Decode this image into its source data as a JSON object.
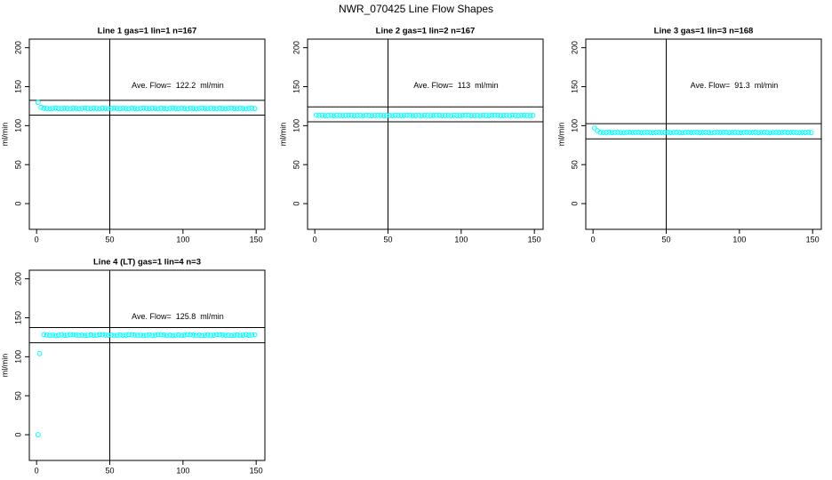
{
  "title": "NWR_070425  Line Flow Shapes",
  "chart_data": [
    {
      "type": "scatter",
      "title": "Line 1 gas=1 lin=1 n=167",
      "ylabel": "ml/min",
      "annotation": "Ave. Flow=  122.2  ml/min",
      "color": "#00ffff",
      "xlim": [
        -4.96,
        155.96
      ],
      "ylim": [
        -33,
        211
      ],
      "xticks": [
        0,
        50,
        100,
        150
      ],
      "yticks": [
        0,
        50,
        100,
        150,
        200
      ],
      "hlines": [
        132.5,
        113.5
      ],
      "vline": 50,
      "x": [
        1,
        3,
        5,
        7,
        9,
        11,
        13,
        15,
        17,
        19,
        21,
        23,
        25,
        27,
        29,
        31,
        33,
        35,
        37,
        39,
        41,
        43,
        45,
        47,
        49,
        51,
        53,
        55,
        57,
        59,
        61,
        63,
        65,
        67,
        69,
        71,
        73,
        75,
        77,
        79,
        81,
        83,
        85,
        87,
        89,
        91,
        93,
        95,
        97,
        99,
        101,
        103,
        105,
        107,
        109,
        111,
        113,
        115,
        117,
        119,
        121,
        123,
        125,
        127,
        129,
        131,
        133,
        135,
        137,
        139,
        141,
        143,
        145,
        147,
        149
      ],
      "values": [
        130,
        123.5,
        122.3,
        122,
        121.8,
        122.1,
        122.4,
        122,
        121.9,
        122.2,
        122,
        121.7,
        122.3,
        122,
        121.8,
        122.1,
        122.4,
        122,
        121.9,
        122.2,
        122,
        121.7,
        122.3,
        122,
        121.8,
        122.1,
        122.4,
        122,
        121.9,
        122.2,
        122,
        121.7,
        122.3,
        122,
        121.8,
        122.1,
        122.4,
        122,
        121.9,
        122.2,
        122,
        121.7,
        122.3,
        122,
        121.8,
        122.1,
        122.4,
        122,
        121.9,
        122.2,
        122,
        121.7,
        122.3,
        122,
        121.8,
        122.1,
        122.4,
        122,
        121.9,
        122.2,
        122,
        121.7,
        122.3,
        122,
        121.8,
        122.1,
        122.4,
        122,
        121.9,
        122.2,
        122,
        121.7,
        122.1,
        122.3,
        121.9
      ]
    },
    {
      "type": "scatter",
      "title": "Line 2 gas=1 lin=2 n=167",
      "ylabel": "ml/min",
      "annotation": "Ave. Flow=  113  ml/min",
      "color": "#00ffff",
      "xlim": [
        -4.96,
        155.96
      ],
      "ylim": [
        -33,
        211
      ],
      "xticks": [
        0,
        50,
        100,
        150
      ],
      "yticks": [
        0,
        50,
        100,
        150,
        200
      ],
      "hlines": [
        124,
        105
      ],
      "vline": 50,
      "x": [
        1,
        3,
        5,
        7,
        9,
        11,
        13,
        15,
        17,
        19,
        21,
        23,
        25,
        27,
        29,
        31,
        33,
        35,
        37,
        39,
        41,
        43,
        45,
        47,
        49,
        51,
        53,
        55,
        57,
        59,
        61,
        63,
        65,
        67,
        69,
        71,
        73,
        75,
        77,
        79,
        81,
        83,
        85,
        87,
        89,
        91,
        93,
        95,
        97,
        99,
        101,
        103,
        105,
        107,
        109,
        111,
        113,
        115,
        117,
        119,
        121,
        123,
        125,
        127,
        129,
        131,
        133,
        135,
        137,
        139,
        141,
        143,
        145,
        147,
        149
      ],
      "values": [
        113.4,
        113.1,
        113.2,
        112.9,
        113,
        113.1,
        112.8,
        113.3,
        113,
        112.9,
        113.1,
        113.2,
        113.2,
        112.9,
        113,
        113.1,
        112.8,
        113.3,
        113,
        112.9,
        113.1,
        113.2,
        113.2,
        112.9,
        113,
        113.1,
        112.8,
        113.3,
        113,
        112.9,
        113.1,
        113.2,
        113.2,
        112.9,
        113,
        113.1,
        112.8,
        113.3,
        113,
        112.9,
        113.1,
        113.2,
        113.2,
        112.9,
        113,
        113.1,
        112.8,
        113.3,
        113,
        112.9,
        113.1,
        113.2,
        113.2,
        112.9,
        113,
        113.1,
        112.8,
        113.3,
        113,
        112.9,
        113.1,
        113.2,
        113.2,
        112.9,
        113,
        113.1,
        112.8,
        113.3,
        113,
        112.9,
        113.1,
        113.2,
        113,
        112.9,
        113.1
      ]
    },
    {
      "type": "scatter",
      "title": "Line 3 gas=1 lin=3 n=168",
      "ylabel": "ml/min",
      "annotation": "Ave. Flow=  91.3  ml/min",
      "color": "#00ffff",
      "xlim": [
        -4.96,
        155.96
      ],
      "ylim": [
        -33,
        211
      ],
      "xticks": [
        0,
        50,
        100,
        150
      ],
      "yticks": [
        0,
        50,
        100,
        150,
        200
      ],
      "hlines": [
        102.5,
        83
      ],
      "vline": 50,
      "x": [
        1,
        3,
        5,
        7,
        9,
        11,
        13,
        15,
        17,
        19,
        21,
        23,
        25,
        27,
        29,
        31,
        33,
        35,
        37,
        39,
        41,
        43,
        45,
        47,
        49,
        51,
        53,
        55,
        57,
        59,
        61,
        63,
        65,
        67,
        69,
        71,
        73,
        75,
        77,
        79,
        81,
        83,
        85,
        87,
        89,
        91,
        93,
        95,
        97,
        99,
        101,
        103,
        105,
        107,
        109,
        111,
        113,
        115,
        117,
        119,
        121,
        123,
        125,
        127,
        129,
        131,
        133,
        135,
        137,
        139,
        141,
        143,
        145,
        147,
        149
      ],
      "values": [
        97,
        93.5,
        91.4,
        91.2,
        91.3,
        91.5,
        91.1,
        91.3,
        91.4,
        91.2,
        91,
        91.3,
        91.4,
        91.2,
        91.3,
        91.5,
        91.1,
        91.3,
        91.4,
        91.2,
        91,
        91.3,
        91.4,
        91.2,
        91.3,
        91.5,
        91.1,
        91.3,
        91.4,
        91.2,
        91,
        91.3,
        91.4,
        91.2,
        91.3,
        91.5,
        91.1,
        91.3,
        91.4,
        91.2,
        91,
        91.3,
        91.4,
        91.2,
        91.3,
        91.5,
        91.1,
        91.3,
        91.4,
        91.2,
        91,
        91.3,
        91.4,
        91.2,
        91.3,
        91.5,
        91.1,
        91.3,
        91.4,
        91.2,
        91,
        91.3,
        91.4,
        91.2,
        91.3,
        91.5,
        91.1,
        91.3,
        91.4,
        91.2,
        91,
        91.3,
        91.2,
        91.4,
        91.1
      ]
    },
    {
      "type": "scatter",
      "title": "Line 4 (LT) gas=1 lin=4 n=3",
      "ylabel": "ml/min",
      "annotation": "Ave. Flow=  125.8  ml/min",
      "color": "#00ffff",
      "xlim": [
        -4.96,
        155.96
      ],
      "ylim": [
        -33,
        211
      ],
      "xticks": [
        0,
        50,
        100,
        150
      ],
      "yticks": [
        0,
        50,
        100,
        150,
        200
      ],
      "hlines": [
        137.5,
        118
      ],
      "vline": 50,
      "x": [
        1,
        2,
        5,
        7,
        9,
        11,
        13,
        15,
        17,
        19,
        21,
        23,
        25,
        27,
        29,
        31,
        33,
        35,
        37,
        39,
        41,
        43,
        45,
        47,
        49,
        51,
        53,
        55,
        57,
        59,
        61,
        63,
        65,
        67,
        69,
        71,
        73,
        75,
        77,
        79,
        81,
        83,
        85,
        87,
        89,
        91,
        93,
        95,
        97,
        99,
        101,
        103,
        105,
        107,
        109,
        111,
        113,
        115,
        117,
        119,
        121,
        123,
        125,
        127,
        129,
        131,
        133,
        135,
        137,
        139,
        141,
        143,
        145,
        147,
        149
      ],
      "values": [
        0,
        104,
        128.3,
        127.9,
        127.5,
        127.8,
        127.2,
        127.6,
        128.1,
        127.4,
        127.7,
        128.5,
        128.3,
        127.9,
        127.5,
        127.8,
        127.2,
        127.6,
        128.1,
        127.4,
        127.7,
        128.5,
        128.3,
        127.9,
        127.5,
        127.8,
        127.2,
        127.6,
        128.1,
        127.4,
        127.7,
        128.5,
        128.3,
        127.9,
        127.5,
        127.8,
        127.2,
        127.6,
        128.1,
        127.4,
        127.7,
        128.5,
        128.3,
        127.9,
        127.5,
        127.8,
        127.2,
        127.6,
        128.1,
        127.4,
        127.7,
        128.5,
        128.3,
        127.9,
        127.5,
        127.8,
        127.2,
        127.6,
        128.1,
        127.4,
        127.7,
        128.5,
        128.3,
        127.9,
        127.5,
        127.8,
        127.2,
        127.6,
        128.1,
        127.4,
        127.7,
        128.5,
        127.6,
        127.9,
        128.2
      ]
    }
  ]
}
